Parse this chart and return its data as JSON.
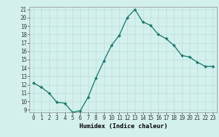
{
  "x": [
    0,
    1,
    2,
    3,
    4,
    5,
    6,
    7,
    8,
    9,
    10,
    11,
    12,
    13,
    14,
    15,
    16,
    17,
    18,
    19,
    20,
    21,
    22,
    23
  ],
  "y": [
    12.2,
    11.7,
    11.0,
    9.9,
    9.8,
    8.7,
    8.9,
    10.5,
    12.8,
    14.8,
    16.7,
    17.9,
    20.0,
    21.0,
    19.5,
    19.1,
    18.0,
    17.5,
    16.7,
    15.5,
    15.3,
    14.7,
    14.2,
    14.2
  ],
  "line_color": "#1a7a6e",
  "marker": "D",
  "marker_size": 2.0,
  "bg_color": "#d4f0ed",
  "grid_color": "#b8ddd9",
  "xlabel": "Humidex (Indice chaleur)",
  "ylim": [
    9,
    21
  ],
  "xlim": [
    -0.5,
    23.5
  ],
  "yticks": [
    9,
    10,
    11,
    12,
    13,
    14,
    15,
    16,
    17,
    18,
    19,
    20,
    21
  ],
  "xticks": [
    0,
    1,
    2,
    3,
    4,
    5,
    6,
    7,
    8,
    9,
    10,
    11,
    12,
    13,
    14,
    15,
    16,
    17,
    18,
    19,
    20,
    21,
    22,
    23
  ],
  "tick_fontsize": 5.5,
  "label_fontsize": 6.5,
  "linewidth": 1.0
}
